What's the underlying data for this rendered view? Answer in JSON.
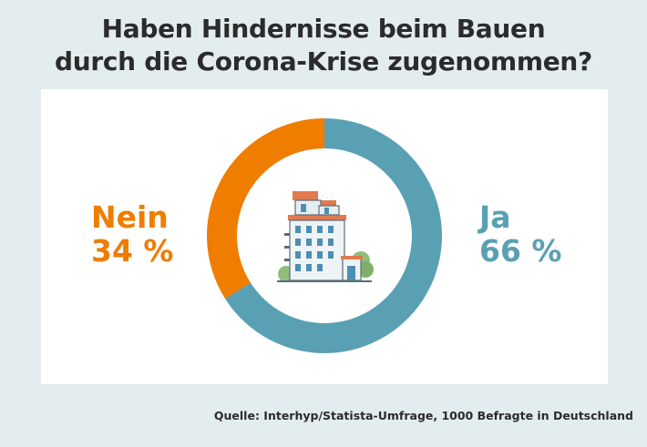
{
  "header": {
    "title_line1": "Haben Hindernisse beim Bauen",
    "title_line2": "durch die Corona-Krise zugenommen?"
  },
  "chart_data": {
    "type": "pie",
    "donut": true,
    "categories": [
      "Ja",
      "Nein"
    ],
    "values": [
      66,
      34
    ],
    "value_labels": [
      "66 %",
      "34 %"
    ],
    "colors": [
      "#5aa0b4",
      "#ef7d00"
    ],
    "title": "Haben Hindernisse beim Bauen durch die Corona-Krise zugenommen?"
  },
  "labels": {
    "nein_name": "Nein",
    "nein_value": "34 %",
    "ja_name": "Ja",
    "ja_value": "66 %"
  },
  "center_icon": "apartment-building-icon",
  "footer": {
    "source": "Quelle: Interhyp/Statista-Umfrage, 1000 Befragte in Deutschland"
  }
}
